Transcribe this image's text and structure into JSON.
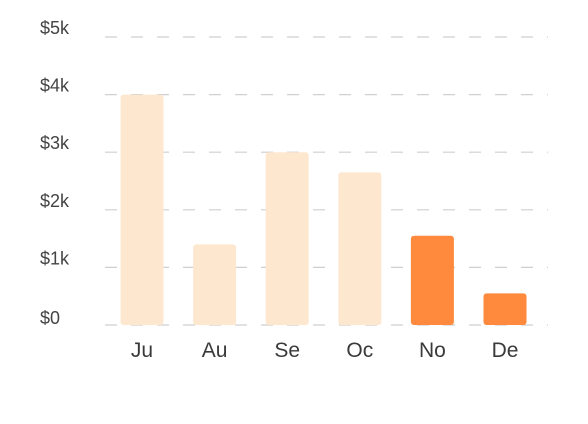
{
  "chart_data": {
    "type": "bar",
    "categories": [
      "Ju",
      "Au",
      "Se",
      "Oc",
      "No",
      "De"
    ],
    "values": [
      4000,
      1400,
      3000,
      2650,
      1550,
      550
    ],
    "highlighted": [
      false,
      false,
      false,
      false,
      true,
      true
    ],
    "y_ticks": [
      {
        "value": 0,
        "label": "$0"
      },
      {
        "value": 1000,
        "label": "$1k"
      },
      {
        "value": 2000,
        "label": "$2k"
      },
      {
        "value": 3000,
        "label": "$3k"
      },
      {
        "value": 4000,
        "label": "$4k"
      },
      {
        "value": 5000,
        "label": "$5k"
      }
    ],
    "ylim": [
      0,
      5000
    ],
    "grid": true,
    "colors": {
      "bar_default": "#fde8cf",
      "bar_highlight": "#ff8a3d",
      "grid": "#cfcfcf",
      "tick_text": "#444444"
    }
  }
}
